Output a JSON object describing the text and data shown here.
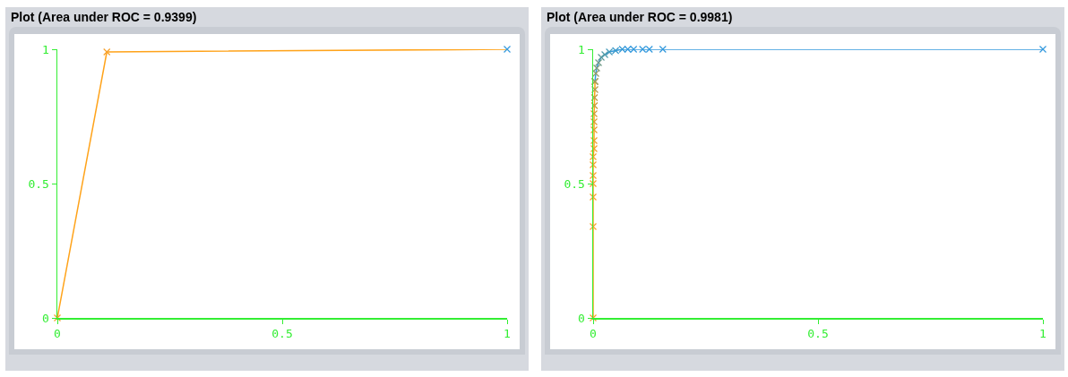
{
  "chart_data": [
    {
      "type": "line",
      "title": "Plot (Area under ROC = 0.9399)",
      "xlim": [
        0,
        1
      ],
      "ylim": [
        0,
        1
      ],
      "xticks": [
        0,
        0.5,
        1
      ],
      "yticks": [
        0,
        0.5,
        1
      ],
      "marker": "cross",
      "line_style": "solid",
      "series": [
        {
          "color": "#ffa31a",
          "x": [
            0,
            0.11,
            1
          ],
          "values": [
            0,
            0.99,
            1
          ],
          "colors": [
            "#f7a02a",
            "#f7a02a",
            "#3399dd"
          ]
        }
      ]
    },
    {
      "type": "line",
      "title": "Plot (Area under ROC = 0.9981)",
      "xlim": [
        0,
        1
      ],
      "ylim": [
        0,
        1
      ],
      "xticks": [
        0,
        0.5,
        1
      ],
      "yticks": [
        0,
        0.5,
        1
      ],
      "marker": "cross",
      "line_style": "solid",
      "series": [
        {
          "color": "#ffa31a",
          "x": [
            0,
            0,
            0,
            0,
            0,
            0,
            0,
            0.002,
            0.002,
            0.002,
            0.002,
            0.002,
            0.003,
            0.003,
            0.004,
            0.004
          ],
          "values": [
            0,
            0.34,
            0.45,
            0.5,
            0.53,
            0.57,
            0.6,
            0.63,
            0.66,
            0.7,
            0.73,
            0.76,
            0.79,
            0.82,
            0.85,
            0.88
          ],
          "colors": [
            "#f7a02a",
            "#f7a02a",
            "#f7a02a",
            "#f7a02a",
            "#f7a02a",
            "#f7a02a",
            "#f5a02a",
            "#f0a02c",
            "#eaa02e",
            "#e29f30",
            "#d99e34",
            "#cf9d38",
            "#c59c3c",
            "#b99b44",
            "#ad9a4c",
            "#a09a55"
          ]
        },
        {
          "color": "#3399dd",
          "x": [
            0.004,
            0.006,
            0.008,
            0.012,
            0.018,
            0.026,
            0.036,
            0.05,
            0.065,
            0.077,
            0.09,
            0.11,
            0.125,
            0.155,
            1
          ],
          "values": [
            0.88,
            0.91,
            0.93,
            0.95,
            0.97,
            0.98,
            0.99,
            0.995,
            1,
            1,
            1,
            1,
            1,
            1,
            1
          ],
          "colors": [
            "#a09a55",
            "#909a66",
            "#809a77",
            "#709a88",
            "#609a99",
            "#509aaa",
            "#449abb",
            "#3c9acb",
            "#3699d5",
            "#3399dd",
            "#3399dd",
            "#3399dd",
            "#3399dd",
            "#3399dd",
            "#3399dd"
          ]
        }
      ]
    }
  ]
}
